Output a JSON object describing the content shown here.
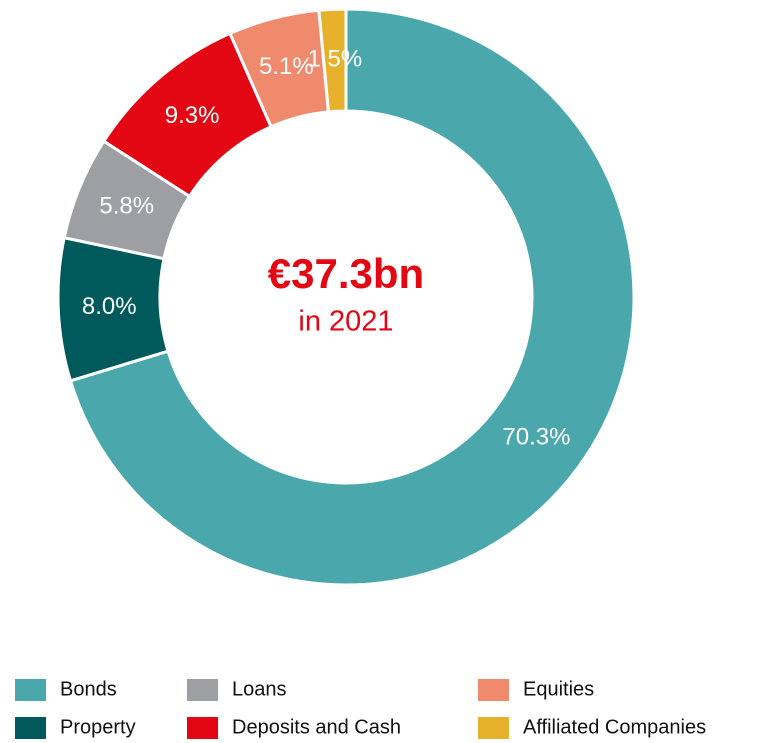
{
  "chart_data": {
    "type": "donut",
    "center_title": "€37.3bn",
    "center_subtitle": "in 2021",
    "categories": [
      "Bonds",
      "Property",
      "Loans",
      "Deposits and Cash",
      "Equities",
      "Affiliated Companies"
    ],
    "values": [
      70.3,
      8.0,
      5.8,
      9.3,
      5.1,
      1.5
    ],
    "value_labels": [
      "70.3%",
      "8.0%",
      "5.8%",
      "9.3%",
      "5.1%",
      "1.5%"
    ],
    "colors": [
      "#4aa8ad",
      "#005a5b",
      "#9d9fa2",
      "#e30613",
      "#f08a6c",
      "#e8b12c"
    ]
  }
}
